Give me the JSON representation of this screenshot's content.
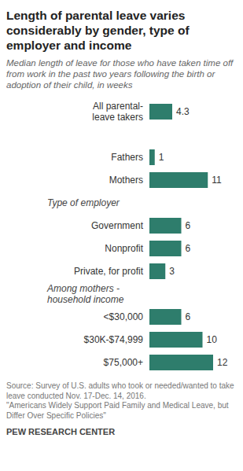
{
  "chart_data": {
    "type": "bar",
    "orientation": "horizontal",
    "title": "Length of parental leave varies considerably by gender, type of employer and income",
    "subtitle": "Median length of leave for those who have taken time off from work in the past two years following the birth or adoption of their child, in weeks",
    "groups": [
      {
        "categories": [
          "All parental-leave takers"
        ],
        "values": [
          4.3
        ]
      },
      {
        "categories": [
          "Fathers",
          "Mothers"
        ],
        "values": [
          1,
          11
        ]
      },
      {
        "name": "Type of employer",
        "categories": [
          "Government",
          "Nonprofit",
          "Private, for profit"
        ],
        "values": [
          6,
          6,
          3
        ]
      },
      {
        "name": "Among mothers - household income",
        "categories": [
          "<$30,000",
          "$30K-$74,999",
          "$75,000+"
        ],
        "values": [
          6,
          10,
          12
        ]
      }
    ],
    "color": "#2e7d6c",
    "xlim": [
      0,
      12
    ],
    "data_labels": true,
    "tick_labels": "y",
    "grid": false,
    "source": [
      "Source: Survey of U.S. adults who took or needed/wanted to take leave conducted Nov. 17-Dec. 14, 2016.",
      "\"Americans Widely Support Paid Family and Medical Leave, but Differ Over Specific Policies\""
    ],
    "footer": "PEW RESEARCH CENTER"
  }
}
